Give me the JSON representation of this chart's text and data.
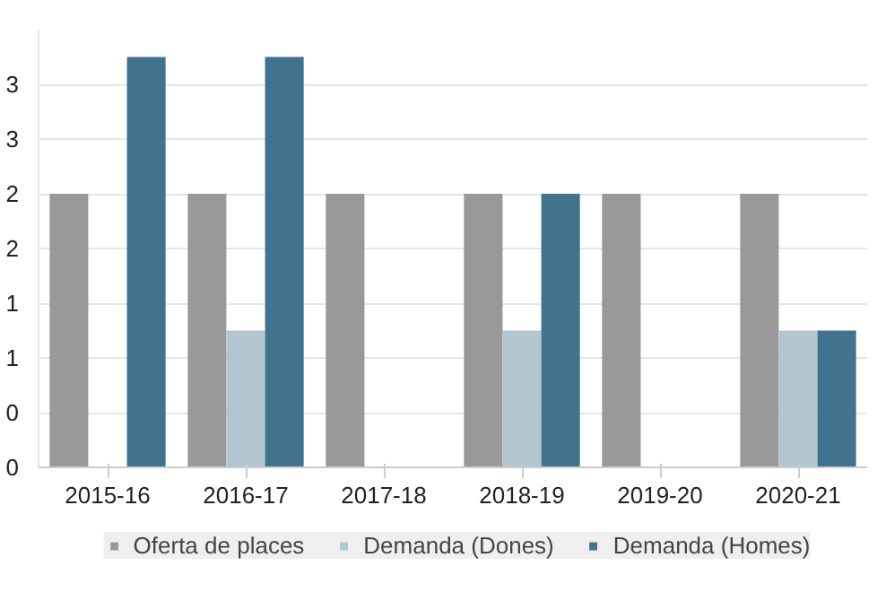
{
  "chart_data": {
    "type": "bar",
    "categories": [
      "2015-16",
      "2016-17",
      "2017-18",
      "2018-19",
      "2019-20",
      "2020-21"
    ],
    "series": [
      {
        "name": "Oferta de places",
        "color": "#999999",
        "values": [
          2.5,
          2.5,
          2.5,
          2.5,
          2.5,
          2.5
        ]
      },
      {
        "name": "Demanda (Dones)",
        "color": "#b3c5d1",
        "values": [
          null,
          1.25,
          null,
          1.25,
          null,
          1.25
        ]
      },
      {
        "name": "Demanda (Homes)",
        "color": "#41738f",
        "values": [
          3.75,
          3.75,
          null,
          2.5,
          null,
          1.25
        ]
      }
    ],
    "ylim": [
      0,
      4
    ],
    "yticks": [
      {
        "value": 0,
        "label": "0"
      },
      {
        "value": 0.5,
        "label": "0"
      },
      {
        "value": 1,
        "label": "1"
      },
      {
        "value": 1.5,
        "label": "1"
      },
      {
        "value": 2,
        "label": "2"
      },
      {
        "value": 2.5,
        "label": "2"
      },
      {
        "value": 3,
        "label": "3"
      },
      {
        "value": 3.5,
        "label": "3"
      }
    ],
    "grid": "y",
    "legend": "bottom"
  }
}
